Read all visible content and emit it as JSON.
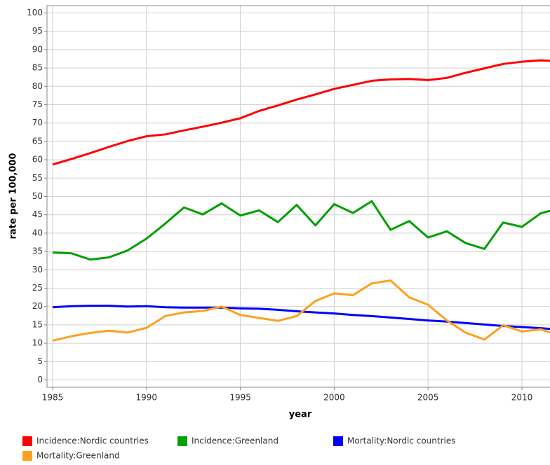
{
  "chart_data": {
    "type": "line",
    "x": [
      1985,
      1986,
      1987,
      1988,
      1989,
      1990,
      1991,
      1992,
      1993,
      1994,
      1995,
      1996,
      1997,
      1998,
      1999,
      2000,
      2001,
      2002,
      2003,
      2004,
      2005,
      2006,
      2007,
      2008,
      2009,
      2010,
      2011,
      2012
    ],
    "series": [
      {
        "name": "Incidence:Nordic countries",
        "color": "#ff0000",
        "values": [
          58.7,
          60.2,
          61.8,
          63.5,
          65.1,
          66.4,
          66.9,
          68.0,
          69.0,
          70.1,
          71.3,
          73.3,
          74.8,
          76.4,
          77.8,
          79.3,
          80.4,
          81.5,
          81.9,
          82.0,
          81.7,
          82.3,
          83.7,
          84.9,
          86.1,
          86.7,
          87.1,
          86.8
        ]
      },
      {
        "name": "Incidence:Greenland",
        "color": "#00a000",
        "values": [
          34.7,
          34.5,
          32.8,
          33.4,
          35.3,
          38.5,
          42.6,
          47.0,
          45.1,
          48.1,
          44.8,
          46.2,
          43.0,
          47.7,
          42.1,
          47.9,
          45.5,
          48.7,
          40.9,
          43.3,
          38.8,
          40.5,
          37.3,
          35.7,
          42.9,
          41.7,
          45.4,
          46.7
        ]
      },
      {
        "name": "Mortality:Nordic countries",
        "color": "#0000ff",
        "values": [
          19.8,
          20.1,
          20.2,
          20.2,
          20.0,
          20.1,
          19.8,
          19.7,
          19.7,
          19.7,
          19.5,
          19.4,
          19.1,
          18.7,
          18.4,
          18.1,
          17.7,
          17.4,
          17.0,
          16.6,
          16.2,
          15.9,
          15.5,
          15.1,
          14.7,
          14.4,
          14.1,
          13.7
        ]
      },
      {
        "name": "Mortality:Greenland",
        "color": "#ffa020",
        "values": [
          10.7,
          11.9,
          12.8,
          13.4,
          12.9,
          14.2,
          17.4,
          18.4,
          18.8,
          20.0,
          17.7,
          16.9,
          16.1,
          17.4,
          21.5,
          23.6,
          23.1,
          26.3,
          27.1,
          22.5,
          20.5,
          16.2,
          12.9,
          11.0,
          14.9,
          13.2,
          13.8,
          12.1
        ]
      }
    ],
    "x_label": "year",
    "y_label": "rate per 100,000",
    "xlim": [
      1984.7,
      2014
    ],
    "ylim": [
      -2,
      102
    ],
    "xticks": [
      1985,
      1990,
      1995,
      2000,
      2005,
      2010
    ],
    "yticks": [
      0,
      5,
      10,
      15,
      20,
      25,
      30,
      35,
      40,
      45,
      50,
      55,
      60,
      65,
      70,
      75,
      80,
      85,
      90,
      95,
      100
    ],
    "grid": true,
    "legend": "bottom"
  }
}
